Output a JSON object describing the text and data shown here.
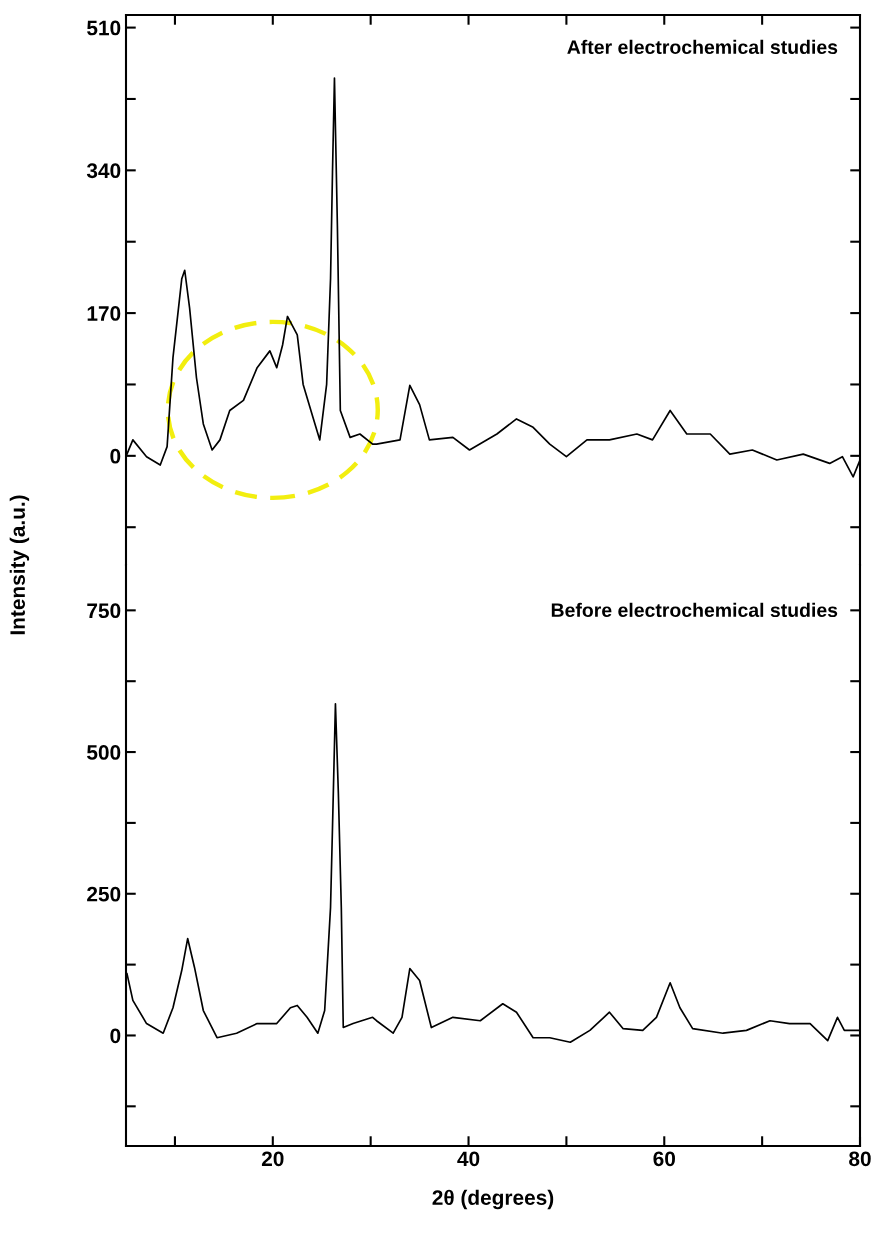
{
  "chart_data": [
    {
      "type": "line",
      "title": "After electrochemical studies",
      "ylabel": "Intensity (a.u.)",
      "tick_labels": "y",
      "grid": false,
      "legend": false,
      "marker": "none",
      "line_style": "solid",
      "xlim": [
        5,
        80
      ],
      "xticks": [
        {
          "value": 10,
          "label": null
        },
        {
          "value": 20,
          "label": null
        },
        {
          "value": 30,
          "label": null
        },
        {
          "value": 40,
          "label": null
        },
        {
          "value": 50,
          "label": null
        },
        {
          "value": 60,
          "label": null
        },
        {
          "value": 70,
          "label": null
        }
      ],
      "ylim": [
        -130,
        525
      ],
      "yticks": [
        {
          "value": -85,
          "label": null
        },
        0,
        {
          "value": 85,
          "label": null
        },
        170,
        {
          "value": 255,
          "label": null
        },
        340,
        {
          "value": 425,
          "label": null
        },
        510
      ],
      "series": [
        {
          "color": "#000000",
          "x": [
            5.1,
            5.7,
            7.1,
            8.5,
            9.2,
            9.8,
            10.7,
            11.0,
            11.5,
            12.2,
            12.9,
            13.8,
            14.6,
            15.6,
            17.0,
            18.4,
            19.7,
            20.4,
            21.0,
            21.5,
            22.5,
            23.1,
            24.1,
            24.8,
            25.5,
            25.9,
            26.1,
            26.3,
            26.6,
            26.9,
            27.9,
            28.9,
            30.2,
            30.6,
            33.0,
            34.0,
            35.0,
            36.0,
            38.4,
            40.1,
            42.9,
            44.9,
            46.6,
            48.3,
            50.0,
            52.1,
            54.4,
            57.2,
            58.8,
            60.6,
            62.3,
            64.7,
            66.7,
            69.0,
            71.5,
            74.2,
            76.9,
            78.2,
            79.3,
            80
          ],
          "values": [
            2,
            19,
            -1,
            -11,
            11,
            117,
            211,
            221,
            176,
            93,
            38,
            7,
            19,
            54,
            66,
            105,
            125,
            105,
            132,
            166,
            144,
            85,
            46,
            19,
            85,
            211,
            338,
            450,
            274,
            54,
            22,
            26,
            14,
            14,
            19,
            84,
            61,
            19,
            22,
            7,
            26,
            44,
            34,
            14,
            -1,
            19,
            19,
            26,
            19,
            54,
            26,
            26,
            2,
            7,
            -5,
            2,
            -9,
            -1,
            -25,
            -5
          ]
        }
      ]
    },
    {
      "type": "line",
      "title": "Before electrochemical studies",
      "xlabel": "2θ (degrees)",
      "grid": false,
      "legend": false,
      "marker": "none",
      "line_style": "solid",
      "xlim": [
        5,
        80
      ],
      "xticks": [
        {
          "value": 10,
          "label": null
        },
        20,
        {
          "value": 30,
          "label": null
        },
        40,
        {
          "value": 50,
          "label": null
        },
        60,
        {
          "value": 70,
          "label": null
        },
        80
      ],
      "ylim": [
        -195,
        830
      ],
      "yticks": [
        {
          "value": -125,
          "label": null
        },
        0,
        {
          "value": 125,
          "label": null
        },
        250,
        {
          "value": 375,
          "label": null
        },
        500,
        {
          "value": 625,
          "label": null
        },
        750
      ],
      "series": [
        {
          "color": "#000000",
          "x": [
            5.1,
            5.7,
            7.1,
            8.8,
            9.8,
            10.7,
            11.3,
            12.0,
            12.9,
            14.3,
            16.3,
            18.4,
            20.4,
            21.8,
            22.5,
            23.5,
            24.6,
            25.3,
            25.9,
            26.1,
            26.4,
            26.7,
            27.0,
            27.2,
            28.2,
            30.2,
            30.6,
            32.3,
            33.2,
            34.0,
            35.0,
            36.2,
            38.4,
            41.2,
            43.5,
            44.9,
            46.6,
            48.3,
            50.4,
            52.4,
            54.4,
            55.8,
            57.8,
            59.2,
            60.6,
            61.6,
            62.9,
            66.0,
            68.4,
            70.8,
            72.8,
            74.9,
            76.7,
            77.7,
            78.4,
            80
          ],
          "values": [
            109,
            62,
            21,
            4,
            49,
            115,
            171,
            120,
            44,
            -4,
            4,
            21,
            21,
            49,
            53,
            32,
            4,
            44,
            226,
            367,
            585,
            427,
            226,
            14,
            21,
            32,
            26,
            4,
            32,
            118,
            97,
            14,
            32,
            26,
            56,
            41,
            -4,
            -4,
            -12,
            9,
            41,
            12,
            9,
            32,
            93,
            49,
            12,
            4,
            9,
            26,
            21,
            21,
            -9,
            32,
            9,
            9
          ]
        }
      ]
    }
  ]
}
